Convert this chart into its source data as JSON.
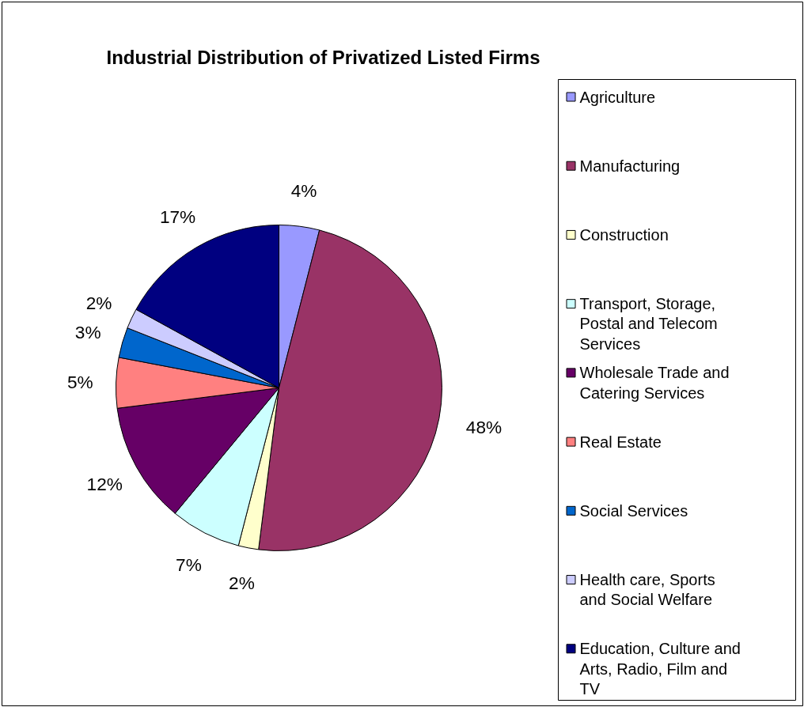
{
  "chart_data": {
    "type": "pie",
    "title": "Industrial Distribution of Privatized Listed Firms",
    "categories": [
      "Agriculture",
      "Manufacturing",
      "Construction",
      "Transport, Storage, Postal and Telecom Services",
      "Wholesale Trade and Catering Services",
      "Real Estate",
      "Social Services",
      "Health care, Sports and Social Welfare",
      "Education, Culture and Arts, Radio, Film and TV"
    ],
    "values": [
      4,
      48,
      2,
      7,
      12,
      5,
      3,
      2,
      17
    ],
    "value_labels": [
      "4%",
      "48%",
      "2%",
      "7%",
      "12%",
      "5%",
      "3%",
      "2%",
      "17%"
    ],
    "colors": [
      "#9999ff",
      "#993366",
      "#ffffcc",
      "#ccffff",
      "#660066",
      "#ff8080",
      "#0066cc",
      "#ccccff",
      "#000080"
    ],
    "legend": "right"
  }
}
